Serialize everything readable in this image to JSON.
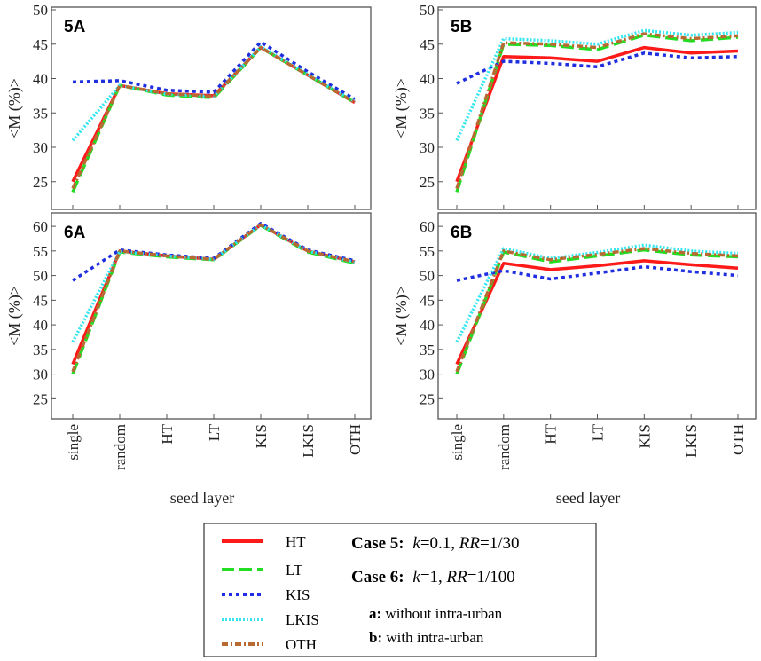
{
  "chart_data": [
    {
      "type": "line",
      "panel": "5A",
      "title": "5A",
      "ylabel": "<M (%)>",
      "xlabel": "",
      "ylim": [
        22,
        50
      ],
      "yticks": [
        25,
        30,
        35,
        40,
        45,
        50
      ],
      "categories": [
        "single",
        "random",
        "HT",
        "LT",
        "KIS",
        "LKIS",
        "OTH"
      ],
      "series": [
        {
          "name": "HT",
          "values": [
            25.0,
            39.0,
            37.8,
            37.5,
            44.5,
            40.5,
            36.5
          ]
        },
        {
          "name": "LT",
          "values": [
            23.5,
            39.0,
            37.6,
            37.2,
            44.5,
            40.5,
            36.5
          ]
        },
        {
          "name": "KIS",
          "values": [
            39.5,
            39.7,
            38.3,
            38.0,
            45.3,
            41.0,
            37.0
          ]
        },
        {
          "name": "LKIS",
          "values": [
            31.0,
            39.0,
            37.7,
            37.4,
            44.6,
            40.6,
            36.6
          ]
        },
        {
          "name": "OTH",
          "values": [
            24.0,
            39.0,
            37.8,
            37.4,
            44.5,
            40.5,
            36.5
          ]
        }
      ]
    },
    {
      "type": "line",
      "panel": "5B",
      "title": "5B",
      "ylabel": "<M (%)>",
      "xlabel": "",
      "ylim": [
        22,
        50
      ],
      "yticks": [
        25,
        30,
        35,
        40,
        45,
        50
      ],
      "categories": [
        "single",
        "random",
        "HT",
        "LT",
        "KIS",
        "LKIS",
        "OTH"
      ],
      "series": [
        {
          "name": "HT",
          "values": [
            25.0,
            43.2,
            43.0,
            42.5,
            44.5,
            43.7,
            44.0
          ]
        },
        {
          "name": "LT",
          "values": [
            23.5,
            45.0,
            44.8,
            44.2,
            46.3,
            45.5,
            46.0
          ]
        },
        {
          "name": "KIS",
          "values": [
            39.3,
            42.5,
            42.2,
            41.7,
            43.7,
            43.0,
            43.2
          ]
        },
        {
          "name": "LKIS",
          "values": [
            31.0,
            45.8,
            45.5,
            45.0,
            47.0,
            46.3,
            46.7
          ]
        },
        {
          "name": "OTH",
          "values": [
            24.0,
            45.2,
            45.0,
            44.5,
            46.5,
            45.8,
            46.2
          ]
        }
      ]
    },
    {
      "type": "line",
      "panel": "6A",
      "title": "6A",
      "ylabel": "<M (%)>",
      "xlabel": "seed layer",
      "ylim": [
        22,
        62
      ],
      "yticks": [
        25,
        30,
        35,
        40,
        45,
        50,
        55,
        60
      ],
      "categories": [
        "single",
        "random",
        "HT",
        "LT",
        "KIS",
        "LKIS",
        "OTH"
      ],
      "series": [
        {
          "name": "HT",
          "values": [
            32.0,
            55.0,
            54.0,
            53.3,
            60.3,
            55.0,
            52.8
          ]
        },
        {
          "name": "LT",
          "values": [
            30.0,
            54.8,
            53.8,
            53.2,
            60.2,
            54.8,
            52.5
          ]
        },
        {
          "name": "KIS",
          "values": [
            49.0,
            55.2,
            54.2,
            53.5,
            60.6,
            55.2,
            53.0
          ]
        },
        {
          "name": "LKIS",
          "values": [
            36.5,
            54.9,
            54.0,
            53.3,
            60.3,
            55.0,
            52.7
          ]
        },
        {
          "name": "OTH",
          "values": [
            30.5,
            55.0,
            54.0,
            53.3,
            60.3,
            55.0,
            52.8
          ]
        }
      ]
    },
    {
      "type": "line",
      "panel": "6B",
      "title": "6B",
      "ylabel": "<M (%)>",
      "xlabel": "seed layer",
      "ylim": [
        22,
        62
      ],
      "yticks": [
        25,
        30,
        35,
        40,
        45,
        50,
        55,
        60
      ],
      "categories": [
        "single",
        "random",
        "HT",
        "LT",
        "KIS",
        "LKIS",
        "OTH"
      ],
      "series": [
        {
          "name": "HT",
          "values": [
            32.0,
            52.5,
            51.2,
            52.0,
            53.0,
            52.2,
            51.5
          ]
        },
        {
          "name": "LT",
          "values": [
            30.0,
            54.8,
            52.8,
            54.0,
            55.2,
            54.2,
            53.8
          ]
        },
        {
          "name": "KIS",
          "values": [
            49.0,
            51.0,
            49.3,
            50.5,
            51.8,
            50.8,
            50.0
          ]
        },
        {
          "name": "LKIS",
          "values": [
            36.5,
            55.5,
            53.5,
            54.7,
            56.2,
            55.0,
            54.5
          ]
        },
        {
          "name": "OTH",
          "values": [
            30.5,
            55.0,
            53.2,
            54.3,
            55.5,
            54.5,
            54.0
          ]
        }
      ]
    }
  ],
  "series_styles": [
    {
      "name": "HT",
      "color": "#ff1a1a",
      "dash": "none"
    },
    {
      "name": "LT",
      "color": "#22dd22",
      "dash": "14 6"
    },
    {
      "name": "KIS",
      "color": "#1f2fe0",
      "dash": "4 4"
    },
    {
      "name": "LKIS",
      "color": "#33e6f0",
      "dash": "2 2"
    },
    {
      "name": "OTH",
      "color": "#b86a33",
      "dash": "7 3 2 3"
    }
  ],
  "legend": {
    "items": [
      "HT",
      "LT",
      "KIS",
      "LKIS",
      "OTH"
    ],
    "case5_label": "Case 5:",
    "case5_k": "k",
    "case5_k_val": "=0.1, ",
    "case5_rr": "RR",
    "case5_rr_val": "=1/30",
    "case6_label": "Case 6:",
    "case6_k": "k",
    "case6_k_val": "=1, ",
    "case6_rr": "RR",
    "case6_rr_val": "=1/100",
    "note_a_label": "a:",
    "note_a_text": " without intra-urban",
    "note_b_label": "b:",
    "note_b_text": " with intra-urban"
  }
}
